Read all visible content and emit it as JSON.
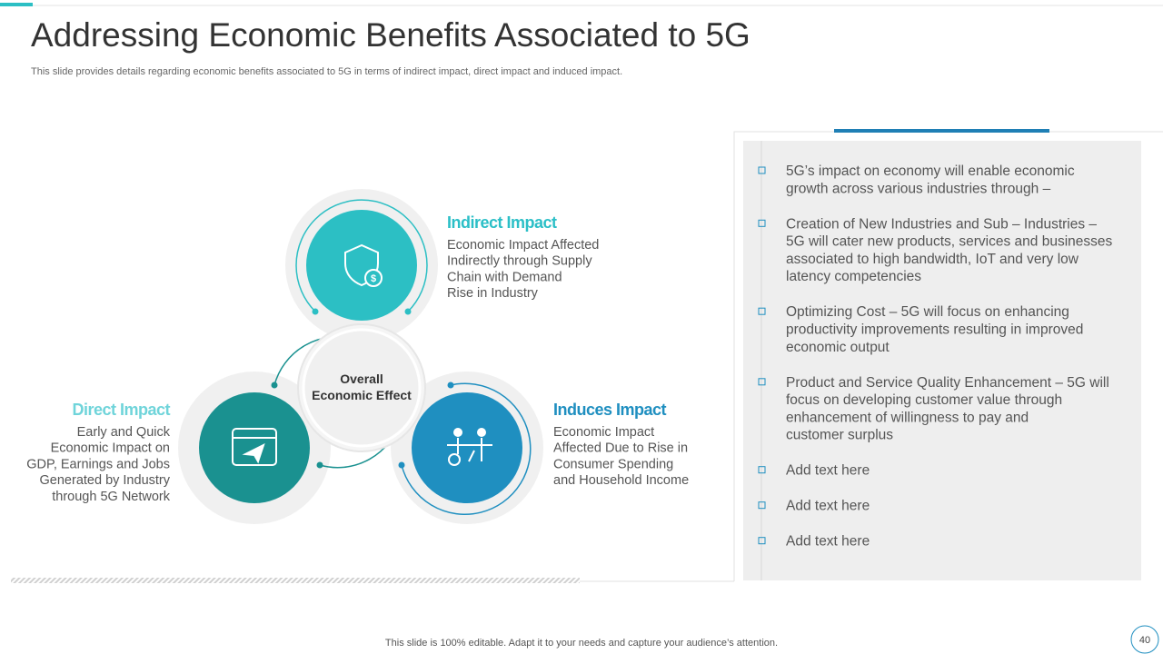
{
  "header": {
    "title": "Addressing Economic Benefits Associated to 5G",
    "subtitle": "This slide provides details regarding economic benefits associated to 5G in terms of indirect impact, direct impact and induced impact."
  },
  "center": {
    "lines": [
      "Overall",
      "Economic Effect"
    ]
  },
  "impacts": [
    {
      "title": "Indirect Impact",
      "lines": [
        "Economic Impact Affected",
        "Indirectly through Supply",
        "Chain with Demand",
        "Rise in Industry"
      ]
    },
    {
      "title": "Direct Impact",
      "lines": [
        "Early and Quick",
        "Economic Impact on",
        "GDP, Earnings and Jobs",
        "Generated by Industry",
        "through 5G Network"
      ]
    },
    {
      "title": "Induces Impact",
      "lines": [
        "Economic Impact",
        "Affected Due to Rise in",
        "Consumer Spending",
        "and Household Income"
      ]
    }
  ],
  "bullets": [
    [
      "5G’s impact on economy will enable economic",
      "growth across various industries through –"
    ],
    [
      "Creation of New Industries and Sub – Industries –",
      "5G will cater new products, services and businesses",
      "associated to high bandwidth, IoT and very low",
      "latency competencies"
    ],
    [
      "Optimizing Cost – 5G will focus on enhancing",
      "productivity improvements resulting in improved",
      "economic output"
    ],
    [
      "Product and Service Quality Enhancement – 5G will",
      "focus on developing customer value through",
      "enhancement  of willingness to pay and",
      "customer surplus"
    ],
    [
      "Add text here"
    ],
    [
      "Add text here"
    ],
    [
      "Add text here"
    ]
  ],
  "footer": {
    "note": "This slide is 100% editable. Adapt it to your needs and capture your audience’s attention.",
    "page": "40"
  }
}
